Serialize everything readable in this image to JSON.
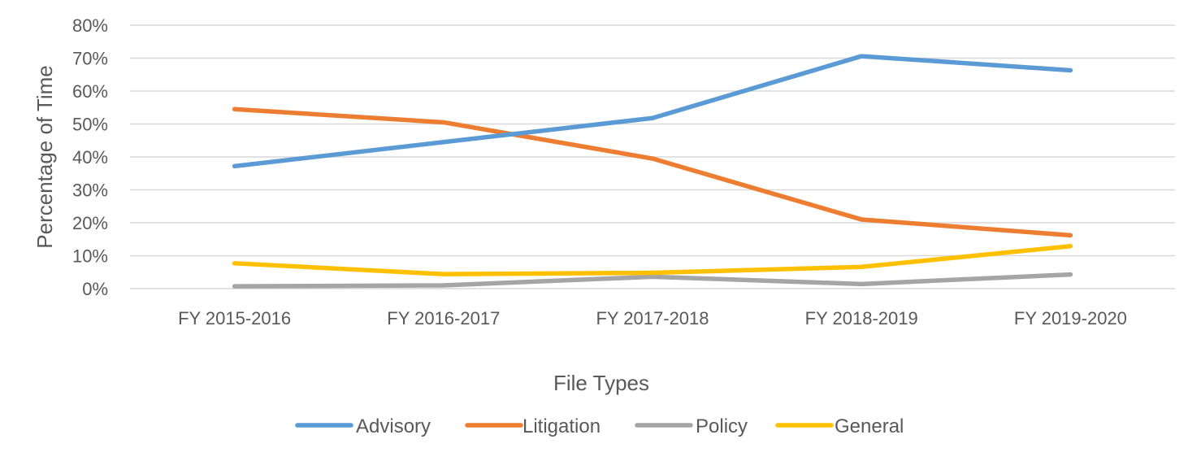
{
  "chart_data": {
    "type": "line",
    "title": "",
    "xlabel": "File Types",
    "ylabel": "Percentage of Time",
    "categories": [
      "FY 2015-2016",
      "FY 2016-2017",
      "FY 2017-2018",
      "FY 2018-2019",
      "FY 2019-2020"
    ],
    "ylim": [
      0,
      80
    ],
    "yticks": [
      0,
      10,
      20,
      30,
      40,
      50,
      60,
      70,
      80
    ],
    "ytick_labels": [
      "0%",
      "10%",
      "20%",
      "30%",
      "40%",
      "50%",
      "60%",
      "70%",
      "80%"
    ],
    "grid": true,
    "legend": "bottom",
    "series": [
      {
        "name": "Advisory",
        "color": "#5B9BD5",
        "values": [
          37.2,
          44.5,
          51.8,
          70.6,
          66.3
        ]
      },
      {
        "name": "Litigation",
        "color": "#ED7D31",
        "values": [
          54.5,
          50.5,
          39.5,
          21.0,
          16.2
        ]
      },
      {
        "name": "Policy",
        "color": "#A5A5A5",
        "values": [
          0.7,
          1.0,
          3.6,
          1.4,
          4.3
        ]
      },
      {
        "name": "General",
        "color": "#FFC000",
        "values": [
          7.7,
          4.4,
          4.8,
          6.6,
          12.9
        ]
      }
    ]
  }
}
